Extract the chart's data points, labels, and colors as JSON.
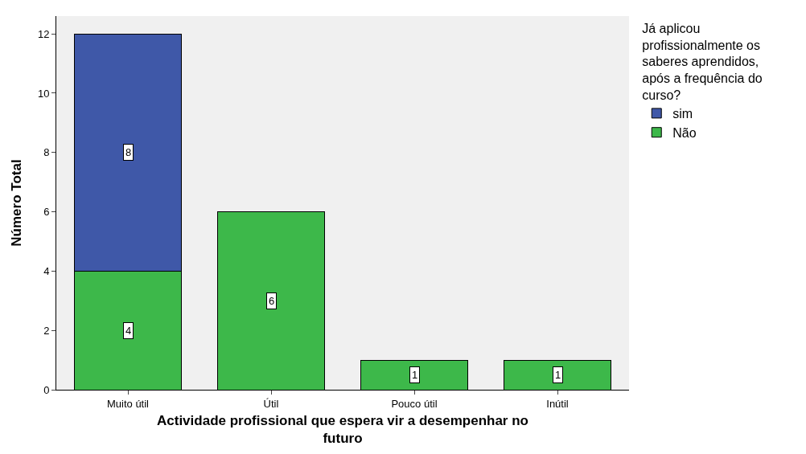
{
  "chart_data": {
    "type": "bar",
    "xlabel": "Actividade profissional que espera vir a desempenhar no futuro",
    "ylabel": "Número Total",
    "legend_title": "Já aplicou profissionalmente os saberes aprendidos, após a frequência do curso?",
    "categories": [
      "Muito útil",
      "Útil",
      "Pouco útil",
      "Inútil"
    ],
    "stacked": true,
    "series": [
      {
        "name": "Não",
        "color": "#3db84a",
        "values": [
          4,
          6,
          1,
          1
        ],
        "value_labels": [
          "4",
          "6",
          "1",
          "1"
        ]
      },
      {
        "name": "sim",
        "color": "#3f58a8",
        "values": [
          8,
          0,
          0,
          0
        ],
        "value_labels": [
          "8",
          null,
          null,
          null
        ]
      }
    ],
    "ylim": [
      0,
      12.6
    ],
    "yticks": [
      0,
      2,
      4,
      6,
      8,
      10,
      12
    ],
    "grid": false,
    "legend": "top right"
  }
}
